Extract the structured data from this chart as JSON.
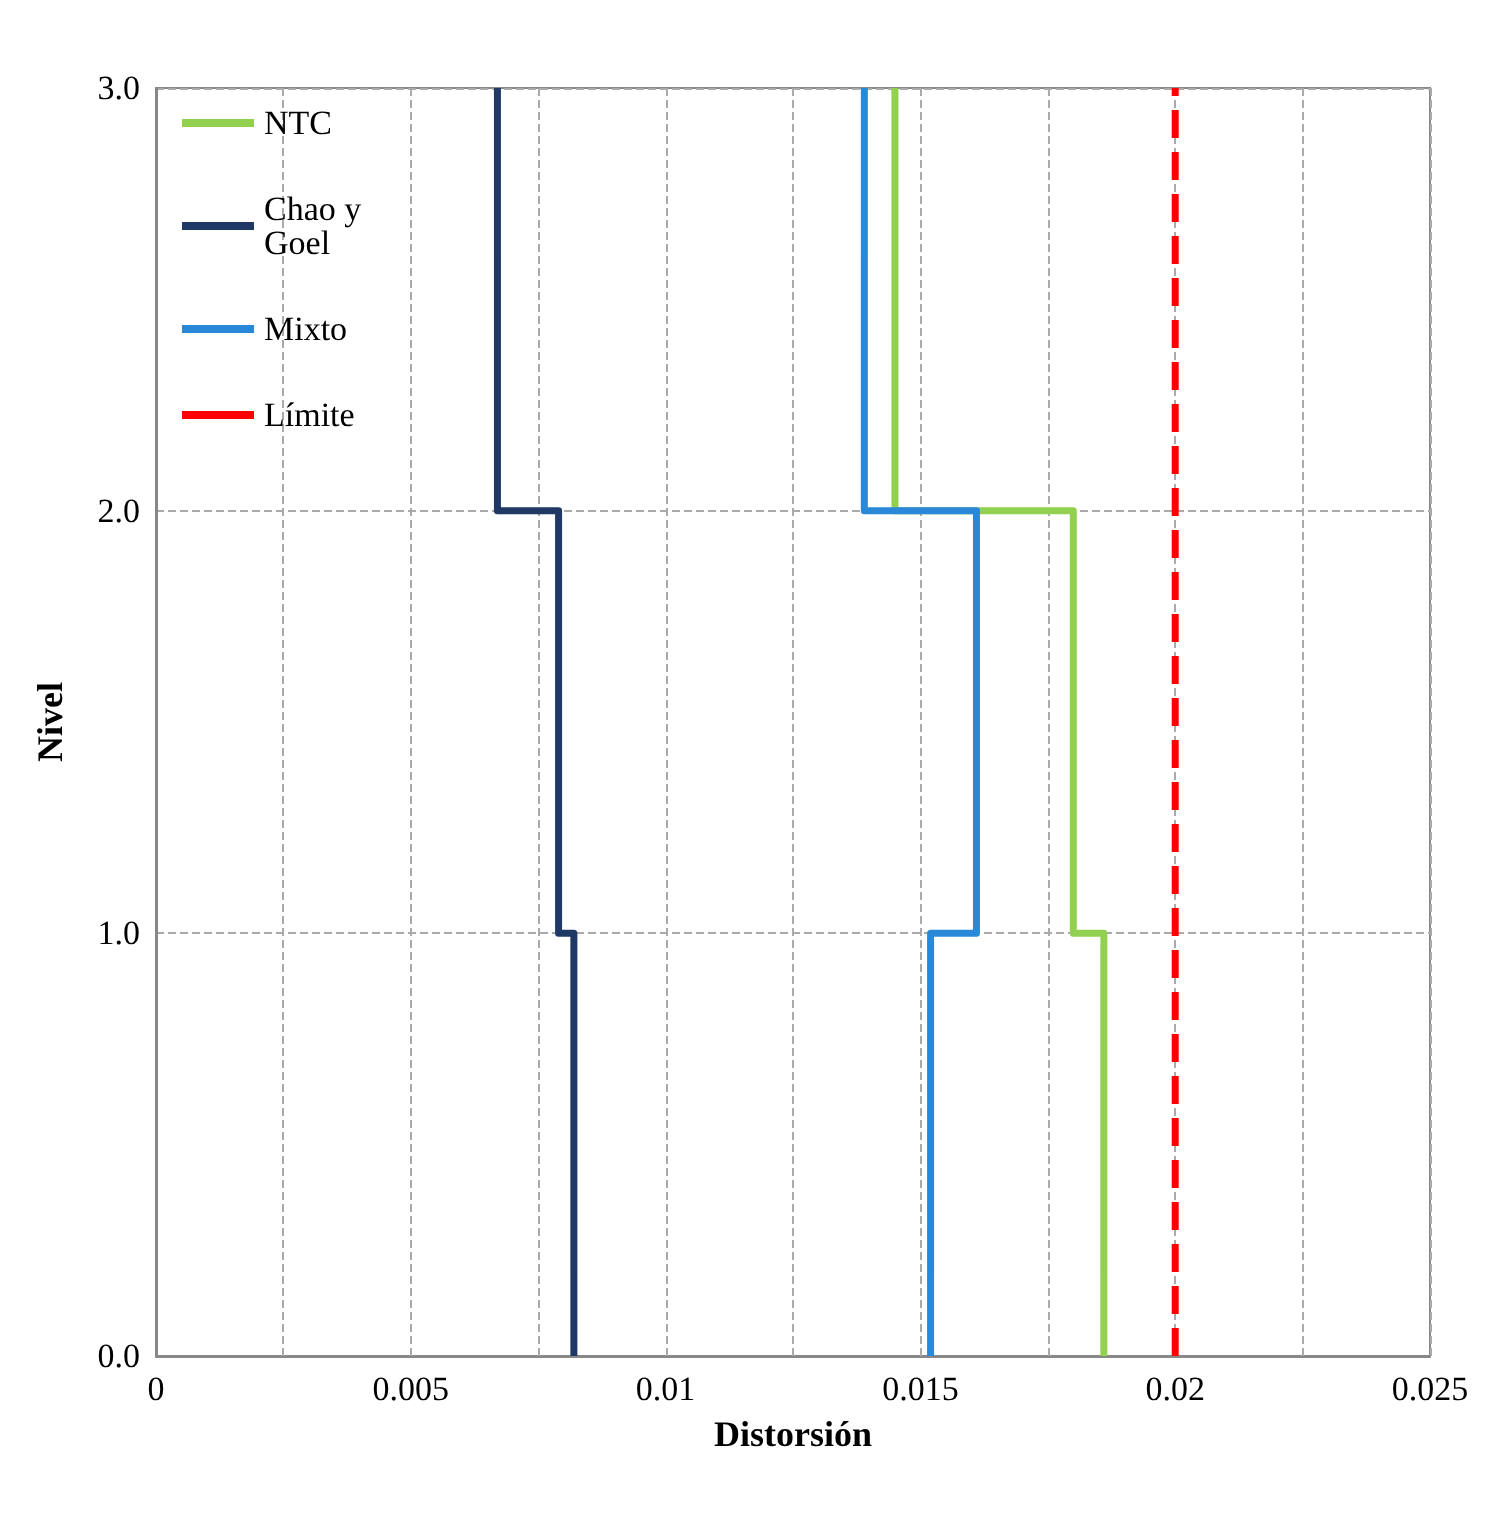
{
  "chart_data": {
    "type": "line",
    "xlabel": "Distorsión",
    "ylabel": "Nivel",
    "xlim": [
      0,
      0.025
    ],
    "ylim": [
      0,
      3
    ],
    "xticks": [
      0,
      {
        "value": 0.0025,
        "label": null
      },
      0.005,
      {
        "value": 0.0075,
        "label": null
      },
      0.01,
      {
        "value": 0.0125,
        "label": null
      },
      0.015,
      {
        "value": 0.0175,
        "label": null
      },
      0.02,
      {
        "value": 0.0225,
        "label": null
      },
      0.025
    ],
    "yticks": [
      {
        "value": 0,
        "label": "0.0"
      },
      {
        "value": 1,
        "label": "1.0"
      },
      {
        "value": 2,
        "label": "2.0"
      },
      {
        "value": 3,
        "label": "3.0"
      }
    ],
    "grid": true,
    "legend": "top left",
    "marker": "none",
    "series": [
      {
        "name": "NTC",
        "color": "#92d050",
        "x": [
          0.0186,
          0.0186,
          0.018,
          0.018,
          0.0145,
          0.0145
        ],
        "values": [
          0,
          1,
          1,
          2,
          2,
          3
        ]
      },
      {
        "name": "Chao y Goel",
        "color": "#1f3864",
        "x": [
          0.0082,
          0.0082,
          0.0079,
          0.0079,
          0.0067,
          0.0067
        ],
        "values": [
          0,
          1,
          1,
          2,
          2,
          3
        ]
      },
      {
        "name": "Mixto",
        "color": "#2a88d8",
        "x": [
          0.0152,
          0.0152,
          0.0161,
          0.0161,
          0.0139,
          0.0139
        ],
        "values": [
          0,
          1,
          1,
          2,
          2,
          3
        ]
      },
      {
        "name": "Límite",
        "color": "#ff0000",
        "line_style": "dashed",
        "x": [
          0.02,
          0.02
        ],
        "values": [
          0,
          3
        ]
      }
    ]
  }
}
